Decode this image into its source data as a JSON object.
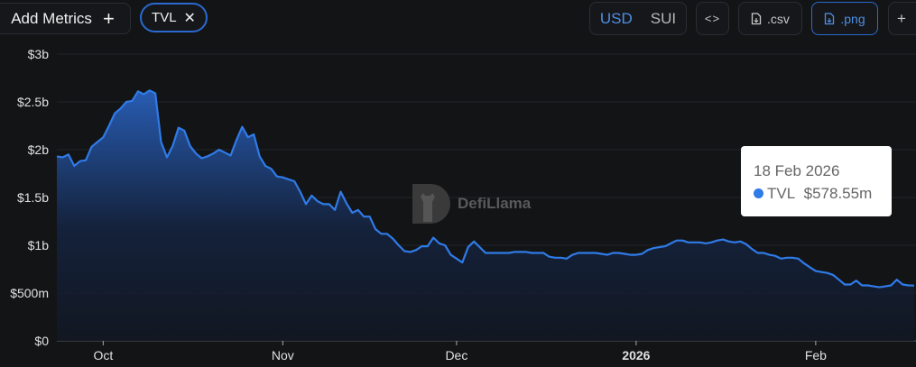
{
  "toolbar": {
    "add_metrics_label": "Add Metrics",
    "add_icon": "plus-icon",
    "metric_pill": "TVL",
    "remove_icon": "close-icon",
    "denominations": [
      "USD",
      "SUI"
    ],
    "selected_denomination": "USD",
    "embed_icon": "code-icon",
    "csv_label": ".csv",
    "png_label": ".png",
    "download_icon": "file-download-icon",
    "more_label": "+"
  },
  "watermark": "DefiLlama",
  "tooltip": {
    "date": "18 Feb 2026",
    "series": "TVL",
    "value": "$578.55m"
  },
  "colors": {
    "accent": "#2a6ad1",
    "line": "#2f7be8",
    "background": "#131416"
  },
  "chart_data": {
    "type": "area",
    "title": "",
    "xlabel": "",
    "ylabel": "",
    "ylim": [
      0,
      3
    ],
    "y_unit": "$b",
    "y_ticks": [
      0,
      0.5,
      1,
      1.5,
      2,
      2.5,
      3
    ],
    "y_tick_labels": [
      "$0",
      "$500m",
      "$1b",
      "$1.5b",
      "$2b",
      "$2.5b",
      "$3b"
    ],
    "x_ticks": [
      "2025-10-01",
      "2025-11-01",
      "2025-12-01",
      "2026-01-01",
      "2026-02-01"
    ],
    "x_tick_labels": [
      "Oct",
      "Nov",
      "Dec",
      "2026",
      "Feb"
    ],
    "grid": "horizontal",
    "series": [
      {
        "name": "TVL",
        "color": "#2f7be8",
        "x": [
          "2025-09-23",
          "2025-09-24",
          "2025-09-25",
          "2025-09-26",
          "2025-09-27",
          "2025-09-28",
          "2025-09-29",
          "2025-09-30",
          "2025-10-01",
          "2025-10-02",
          "2025-10-03",
          "2025-10-04",
          "2025-10-05",
          "2025-10-06",
          "2025-10-07",
          "2025-10-08",
          "2025-10-09",
          "2025-10-10",
          "2025-10-11",
          "2025-10-12",
          "2025-10-13",
          "2025-10-14",
          "2025-10-15",
          "2025-10-16",
          "2025-10-17",
          "2025-10-18",
          "2025-10-19",
          "2025-10-20",
          "2025-10-21",
          "2025-10-22",
          "2025-10-23",
          "2025-10-24",
          "2025-10-25",
          "2025-10-26",
          "2025-10-27",
          "2025-10-28",
          "2025-10-29",
          "2025-10-30",
          "2025-10-31",
          "2025-11-01",
          "2025-11-02",
          "2025-11-03",
          "2025-11-04",
          "2025-11-05",
          "2025-11-06",
          "2025-11-07",
          "2025-11-08",
          "2025-11-09",
          "2025-11-10",
          "2025-11-11",
          "2025-11-12",
          "2025-11-13",
          "2025-11-14",
          "2025-11-15",
          "2025-11-16",
          "2025-11-17",
          "2025-11-18",
          "2025-11-19",
          "2025-11-20",
          "2025-11-21",
          "2025-11-22",
          "2025-11-23",
          "2025-11-24",
          "2025-11-25",
          "2025-11-26",
          "2025-11-27",
          "2025-11-28",
          "2025-11-29",
          "2025-11-30",
          "2025-12-01",
          "2025-12-02",
          "2025-12-03",
          "2025-12-04",
          "2025-12-05",
          "2025-12-06",
          "2025-12-07",
          "2025-12-08",
          "2025-12-09",
          "2025-12-10",
          "2025-12-11",
          "2025-12-12",
          "2025-12-13",
          "2025-12-14",
          "2025-12-15",
          "2025-12-16",
          "2025-12-17",
          "2025-12-18",
          "2025-12-19",
          "2025-12-20",
          "2025-12-21",
          "2025-12-22",
          "2025-12-23",
          "2025-12-24",
          "2025-12-25",
          "2025-12-26",
          "2025-12-27",
          "2025-12-28",
          "2025-12-29",
          "2025-12-30",
          "2025-12-31",
          "2026-01-01",
          "2026-01-02",
          "2026-01-03",
          "2026-01-04",
          "2026-01-05",
          "2026-01-06",
          "2026-01-07",
          "2026-01-08",
          "2026-01-09",
          "2026-01-10",
          "2026-01-11",
          "2026-01-12",
          "2026-01-13",
          "2026-01-14",
          "2026-01-15",
          "2026-01-16",
          "2026-01-17",
          "2026-01-18",
          "2026-01-19",
          "2026-01-20",
          "2026-01-21",
          "2026-01-22",
          "2026-01-23",
          "2026-01-24",
          "2026-01-25",
          "2026-01-26",
          "2026-01-27",
          "2026-01-28",
          "2026-01-29",
          "2026-01-30",
          "2026-01-31",
          "2026-02-01",
          "2026-02-02",
          "2026-02-03",
          "2026-02-04",
          "2026-02-05",
          "2026-02-06",
          "2026-02-07",
          "2026-02-08",
          "2026-02-09",
          "2026-02-10",
          "2026-02-11",
          "2026-02-12",
          "2026-02-13",
          "2026-02-14",
          "2026-02-15",
          "2026-02-16",
          "2026-02-17",
          "2026-02-18"
        ],
        "values": [
          1.93,
          1.92,
          1.95,
          1.83,
          1.88,
          1.89,
          2.03,
          2.08,
          2.13,
          2.25,
          2.38,
          2.43,
          2.5,
          2.51,
          2.61,
          2.58,
          2.62,
          2.59,
          2.08,
          1.92,
          2.04,
          2.23,
          2.2,
          2.04,
          1.96,
          1.91,
          1.93,
          1.96,
          2.0,
          1.97,
          1.94,
          2.1,
          2.24,
          2.13,
          2.16,
          1.93,
          1.83,
          1.8,
          1.72,
          1.71,
          1.69,
          1.67,
          1.56,
          1.43,
          1.52,
          1.46,
          1.43,
          1.43,
          1.37,
          1.56,
          1.44,
          1.34,
          1.37,
          1.3,
          1.3,
          1.17,
          1.12,
          1.12,
          1.07,
          1.0,
          0.94,
          0.93,
          0.95,
          0.99,
          0.99,
          1.08,
          1.02,
          1.0,
          0.9,
          0.86,
          0.82,
          0.98,
          1.04,
          0.98,
          0.92,
          0.92,
          0.92,
          0.92,
          0.92,
          0.93,
          0.93,
          0.93,
          0.92,
          0.92,
          0.92,
          0.88,
          0.87,
          0.87,
          0.86,
          0.9,
          0.92,
          0.92,
          0.92,
          0.92,
          0.91,
          0.9,
          0.92,
          0.92,
          0.91,
          0.9,
          0.9,
          0.91,
          0.95,
          0.97,
          0.98,
          0.99,
          1.02,
          1.05,
          1.05,
          1.03,
          1.03,
          1.03,
          1.02,
          1.03,
          1.05,
          1.06,
          1.04,
          1.03,
          1.04,
          1.01,
          0.96,
          0.92,
          0.92,
          0.9,
          0.89,
          0.86,
          0.87,
          0.87,
          0.86,
          0.81,
          0.77,
          0.73,
          0.72,
          0.71,
          0.69,
          0.64,
          0.59,
          0.59,
          0.63,
          0.58,
          0.58,
          0.57,
          0.56,
          0.57,
          0.58,
          0.64,
          0.59,
          0.58,
          0.57855
        ]
      }
    ]
  }
}
